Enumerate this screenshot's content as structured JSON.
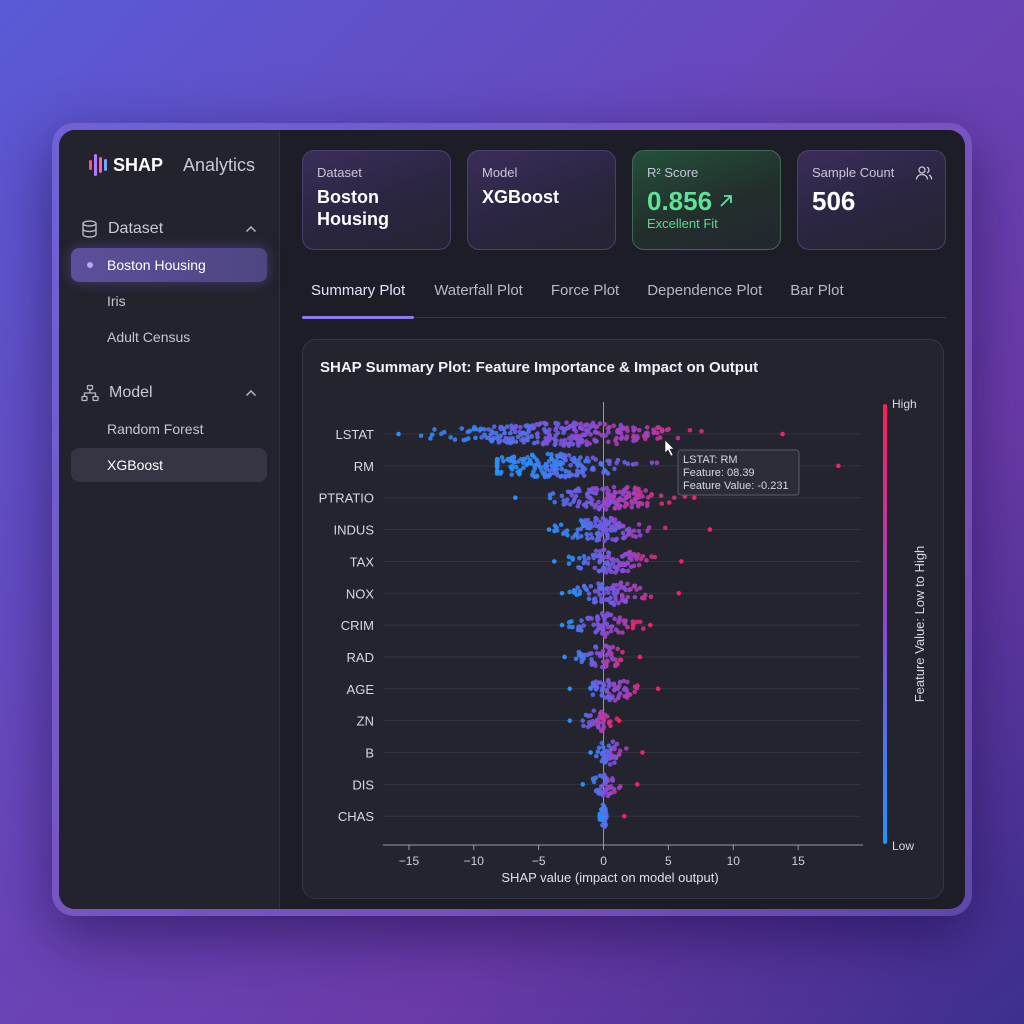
{
  "brand": {
    "name": "SHAP",
    "sub": "Analytics"
  },
  "sidebar": {
    "sections": [
      {
        "label": "Dataset",
        "icon": "database-icon",
        "items": [
          "Boston Housing",
          "Iris",
          "Adult Census"
        ],
        "active": 0
      },
      {
        "label": "Model",
        "icon": "hierarchy-icon",
        "items": [
          "Random Forest",
          "XGBoost"
        ],
        "active": 1
      }
    ]
  },
  "cards": {
    "dataset": {
      "label": "Dataset",
      "value": "Boston Housing"
    },
    "model": {
      "label": "Model",
      "value": "XGBoost"
    },
    "r2": {
      "label": "R² Score",
      "value": "0.856",
      "sub": "Excellent Fit"
    },
    "samples": {
      "label": "Sample Count",
      "value": "506"
    }
  },
  "tabs": [
    "Summary Plot",
    "Waterfall Plot",
    "Force Plot",
    "Dependence Plot",
    "Bar Plot"
  ],
  "active_tab": 0,
  "colors": {
    "accent": "#8f7af0",
    "high": "#ff1f55",
    "low": "#1e96ff",
    "good": "#5ee39a"
  },
  "tooltip": {
    "lines": [
      "LSTAT: RM",
      "Feature: 08.39",
      "Feature Value: -0.231"
    ]
  },
  "chart_data": {
    "type": "scatter",
    "title": "SHAP Summary Plot: Feature Importance & Impact on Output",
    "xlabel": "SHAP value (impact on model output)",
    "xlim": [
      -17,
      20
    ],
    "xticks": [
      -15,
      -10,
      -5,
      0,
      5,
      10,
      15
    ],
    "colorbar": {
      "label": "Feature Value: Low to High",
      "high": "High",
      "low": "Low"
    },
    "features": [
      {
        "name": "LSTAT",
        "min": -15.8,
        "max": 13.8,
        "spread": 8.5,
        "center": -3
      },
      {
        "name": "RM",
        "min": -8.2,
        "max": 18.1,
        "spread": 6.0,
        "center": -4
      },
      {
        "name": "PTRATIO",
        "min": -6.8,
        "max": 7.0,
        "spread": 4.5,
        "center": 0.5
      },
      {
        "name": "INDUS",
        "min": -4.2,
        "max": 8.2,
        "spread": 3.5,
        "center": 0
      },
      {
        "name": "TAX",
        "min": -3.8,
        "max": 6.0,
        "spread": 3.0,
        "center": 0.5
      },
      {
        "name": "NOX",
        "min": -3.2,
        "max": 5.8,
        "spread": 2.6,
        "center": 0.5
      },
      {
        "name": "CRIM",
        "min": -3.2,
        "max": 3.6,
        "spread": 2.2,
        "center": 0
      },
      {
        "name": "RAD",
        "min": -3.0,
        "max": 2.8,
        "spread": 1.8,
        "center": 0
      },
      {
        "name": "AGE",
        "min": -2.6,
        "max": 4.2,
        "spread": 2.0,
        "center": 0.8
      },
      {
        "name": "ZN",
        "min": -2.6,
        "max": 1.2,
        "spread": 1.2,
        "center": -0.3
      },
      {
        "name": "B",
        "min": -1.0,
        "max": 3.0,
        "spread": 1.1,
        "center": 0.4
      },
      {
        "name": "DIS",
        "min": -1.6,
        "max": 2.6,
        "spread": 1.1,
        "center": 0.2
      },
      {
        "name": "CHAS",
        "min": -0.3,
        "max": 1.6,
        "spread": 0.3,
        "center": 0
      }
    ]
  }
}
